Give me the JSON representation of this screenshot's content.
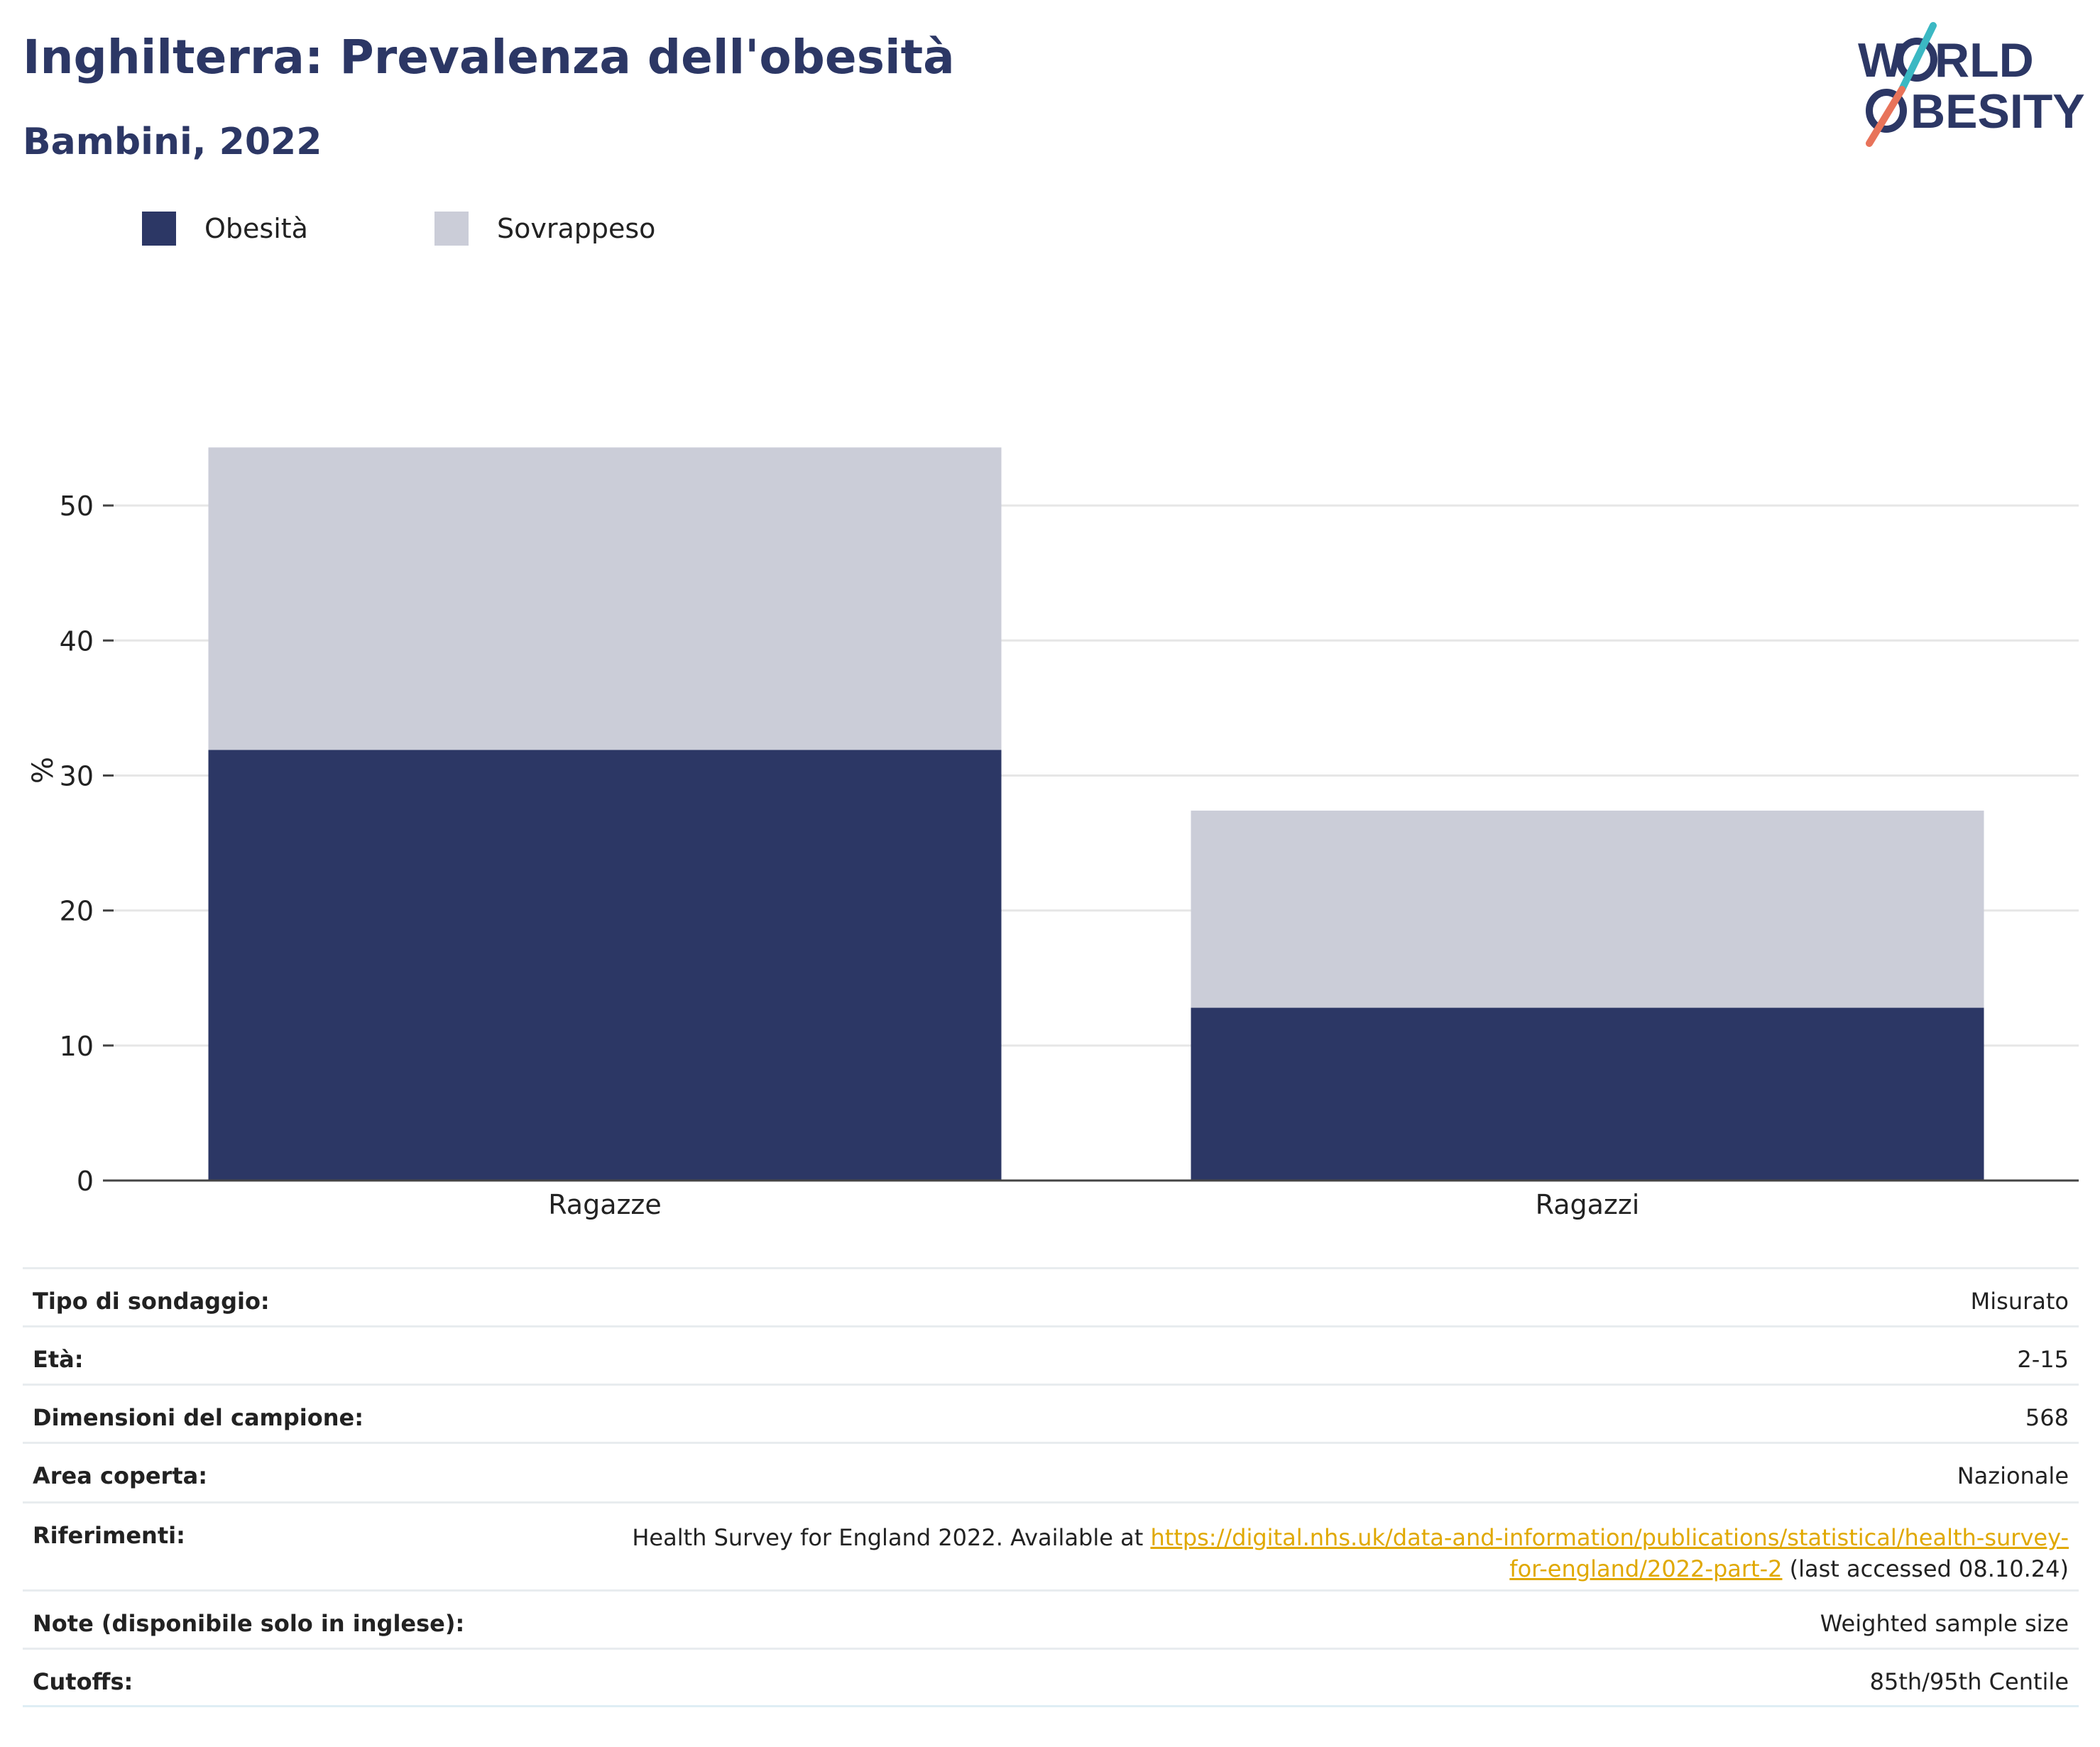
{
  "header": {
    "title": "Inghilterra: Prevalenza dell'obesità",
    "subtitle": "Bambini, 2022"
  },
  "logo": {
    "line1": "W",
    "line1b": "RLD",
    "line2": "BESITY",
    "accent_teal": "#3bb8c3",
    "accent_coral": "#e8735a"
  },
  "colors": {
    "obesity": "#2c3765",
    "overweight": "#cbcdd8",
    "gridline": "#e6e6e6",
    "axis": "#444444",
    "link": "#e0a800"
  },
  "chart_data": {
    "type": "bar",
    "stacked": true,
    "categories": [
      "Ragazze",
      "Ragazzi"
    ],
    "series": [
      {
        "name": "Obesità",
        "values": [
          31.9,
          12.8
        ]
      },
      {
        "name": "Sovrappeso",
        "values": [
          22.4,
          14.6
        ]
      }
    ],
    "ylabel": "%",
    "ylim": [
      0,
      55
    ],
    "yticks": [
      0,
      10,
      20,
      30,
      40,
      50
    ],
    "grid": true,
    "legend_position": "top-left"
  },
  "meta": [
    {
      "label": "Tipo di sondaggio:",
      "value": "Misurato"
    },
    {
      "label": "Età:",
      "value": "2-15"
    },
    {
      "label": "Dimensioni del campione:",
      "value": "568"
    },
    {
      "label": "Area coperta:",
      "value": "Nazionale"
    },
    {
      "label": "Riferimenti:",
      "value_prefix": "Health Survey for England 2022. Available at ",
      "link": "https://digital.nhs.uk/data-and-information/publications/statistical/health-survey-for-england/2022-part-2",
      "value_suffix": " (last accessed 08.10.24)"
    },
    {
      "label": "Note (disponibile solo in inglese):",
      "value": "Weighted sample size"
    },
    {
      "label": "Cutoffs:",
      "value": "85th/95th Centile"
    }
  ]
}
